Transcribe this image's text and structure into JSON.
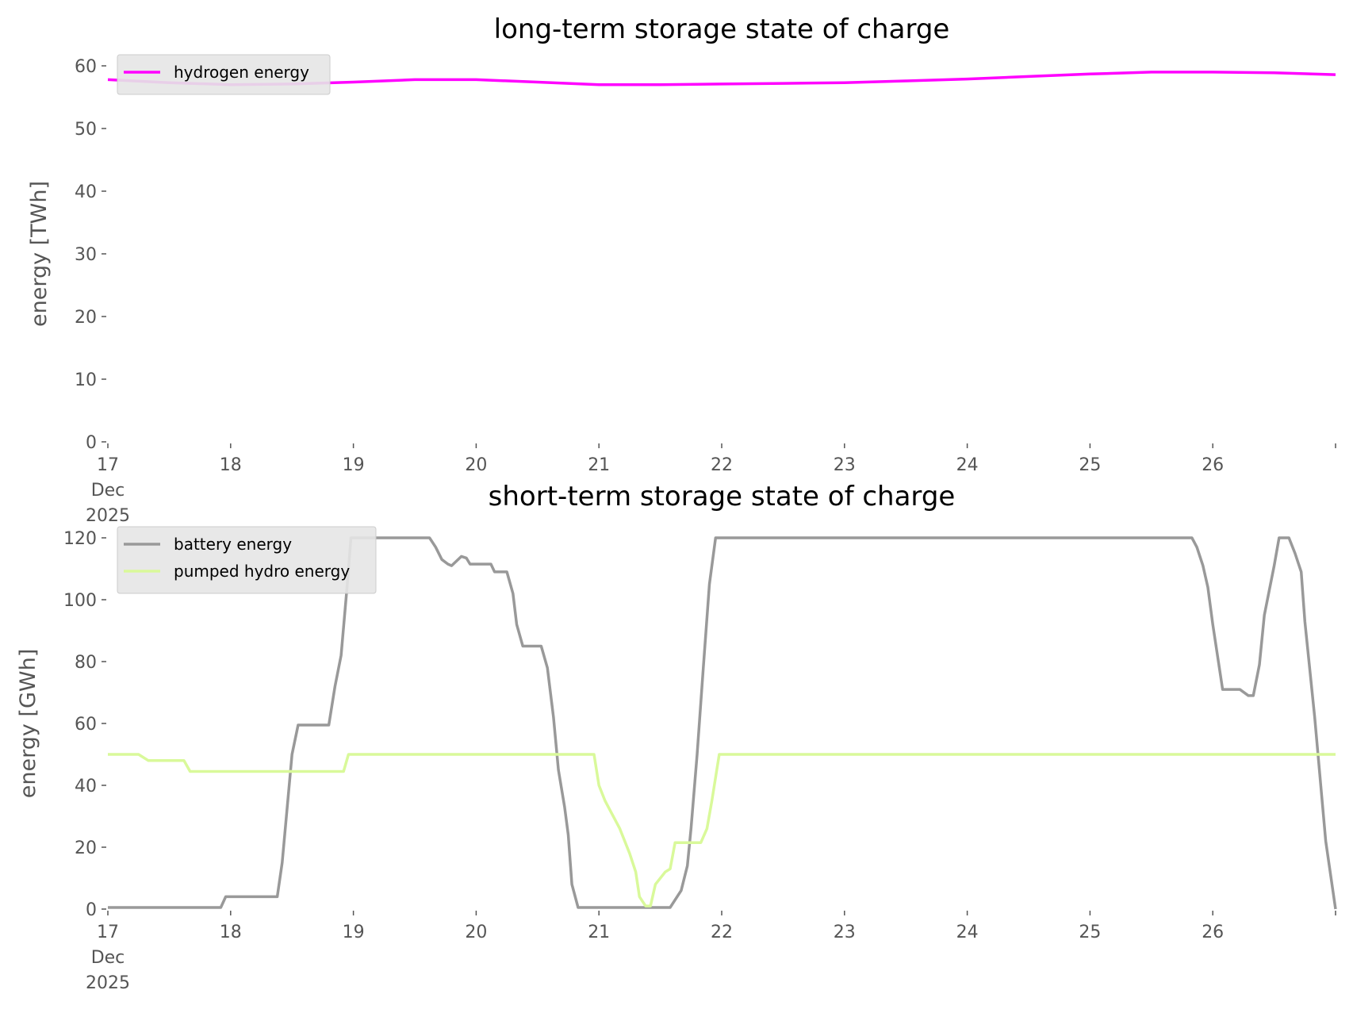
{
  "chart_data": [
    {
      "type": "line",
      "title": "long-term storage state of charge",
      "ylabel": "energy [TWh]",
      "xlabel": "",
      "xlim": [
        "2025-12-17",
        "2025-12-27"
      ],
      "ylim": [
        0,
        62
      ],
      "x_ticks": [
        "17\nDec\n2025",
        "18",
        "19",
        "20",
        "21",
        "22",
        "23",
        "24",
        "25",
        "26",
        ""
      ],
      "y_ticks": [
        0,
        10,
        20,
        30,
        40,
        50,
        60
      ],
      "grid": false,
      "legend": "top-left",
      "series": [
        {
          "name": "hydrogen energy",
          "color": "#ff00ff",
          "points": [
            [
              17,
              57.8
            ],
            [
              17.5,
              57.3
            ],
            [
              18,
              57.0
            ],
            [
              18.5,
              57.1
            ],
            [
              19,
              57.4
            ],
            [
              19.5,
              57.8
            ],
            [
              20,
              57.8
            ],
            [
              20.5,
              57.4
            ],
            [
              21,
              57.0
            ],
            [
              21.5,
              57.0
            ],
            [
              22,
              57.1
            ],
            [
              22.5,
              57.2
            ],
            [
              23,
              57.3
            ],
            [
              23.5,
              57.6
            ],
            [
              24,
              57.9
            ],
            [
              24.5,
              58.3
            ],
            [
              25,
              58.7
            ],
            [
              25.5,
              59.0
            ],
            [
              26,
              59.0
            ],
            [
              26.5,
              58.9
            ],
            [
              27,
              58.6
            ]
          ]
        }
      ]
    },
    {
      "type": "line",
      "title": "short-term storage state of charge",
      "ylabel": "energy [GWh]",
      "xlabel": "",
      "xlim": [
        "2025-12-17",
        "2025-12-27"
      ],
      "ylim": [
        0,
        122
      ],
      "x_ticks": [
        "17\nDec\n2025",
        "18",
        "19",
        "20",
        "21",
        "22",
        "23",
        "24",
        "25",
        "26",
        ""
      ],
      "y_ticks": [
        0,
        20,
        40,
        60,
        80,
        100,
        120
      ],
      "grid": false,
      "legend": "top-left",
      "series": [
        {
          "name": "battery energy",
          "color": "#999999",
          "points": [
            [
              17,
              0.5
            ],
            [
              17.92,
              0.5
            ],
            [
              17.96,
              4
            ],
            [
              18.38,
              4
            ],
            [
              18.42,
              15
            ],
            [
              18.5,
              50
            ],
            [
              18.55,
              59.5
            ],
            [
              18.8,
              59.5
            ],
            [
              18.85,
              72
            ],
            [
              18.9,
              82
            ],
            [
              18.95,
              105
            ],
            [
              18.98,
              120
            ],
            [
              19.62,
              120
            ],
            [
              19.67,
              117
            ],
            [
              19.72,
              113
            ],
            [
              19.77,
              111.5
            ],
            [
              19.8,
              111
            ],
            [
              19.88,
              114
            ],
            [
              19.92,
              113.5
            ],
            [
              19.95,
              111.5
            ],
            [
              20.12,
              111.5
            ],
            [
              20.15,
              109
            ],
            [
              20.25,
              109
            ],
            [
              20.3,
              102
            ],
            [
              20.33,
              92
            ],
            [
              20.38,
              85
            ],
            [
              20.53,
              85
            ],
            [
              20.58,
              78
            ],
            [
              20.63,
              62
            ],
            [
              20.67,
              45
            ],
            [
              20.72,
              33
            ],
            [
              20.75,
              24
            ],
            [
              20.78,
              8
            ],
            [
              20.83,
              0.5
            ],
            [
              21.58,
              0.5
            ],
            [
              21.67,
              6
            ],
            [
              21.72,
              14
            ],
            [
              21.75,
              26
            ],
            [
              21.8,
              50
            ],
            [
              21.85,
              78
            ],
            [
              21.9,
              105
            ],
            [
              21.95,
              120
            ],
            [
              25.83,
              120
            ],
            [
              25.87,
              117
            ],
            [
              25.92,
              111
            ],
            [
              25.96,
              104
            ],
            [
              26.0,
              92
            ],
            [
              26.08,
              71
            ],
            [
              26.22,
              71
            ],
            [
              26.29,
              69
            ],
            [
              26.33,
              69
            ],
            [
              26.38,
              79
            ],
            [
              26.42,
              95
            ],
            [
              26.5,
              111
            ],
            [
              26.54,
              120
            ],
            [
              26.62,
              120
            ],
            [
              26.67,
              115
            ],
            [
              26.72,
              109
            ],
            [
              26.75,
              93
            ],
            [
              26.83,
              62
            ],
            [
              26.92,
              22
            ],
            [
              27,
              0
            ]
          ]
        },
        {
          "name": "pumped hydro energy",
          "color": "#d9f99a",
          "points": [
            [
              17,
              50
            ],
            [
              17.25,
              50
            ],
            [
              17.33,
              48
            ],
            [
              17.62,
              48
            ],
            [
              17.67,
              44.5
            ],
            [
              18.92,
              44.5
            ],
            [
              18.96,
              50
            ],
            [
              20.96,
              50
            ],
            [
              21.0,
              40
            ],
            [
              21.05,
              35
            ],
            [
              21.17,
              26
            ],
            [
              21.25,
              18
            ],
            [
              21.3,
              12
            ],
            [
              21.33,
              4
            ],
            [
              21.38,
              1
            ],
            [
              21.42,
              1
            ],
            [
              21.46,
              8
            ],
            [
              21.54,
              12
            ],
            [
              21.58,
              13
            ],
            [
              21.62,
              21.5
            ],
            [
              21.83,
              21.5
            ],
            [
              21.88,
              26
            ],
            [
              21.92,
              35
            ],
            [
              21.98,
              50
            ],
            [
              27,
              50
            ]
          ]
        }
      ]
    }
  ]
}
